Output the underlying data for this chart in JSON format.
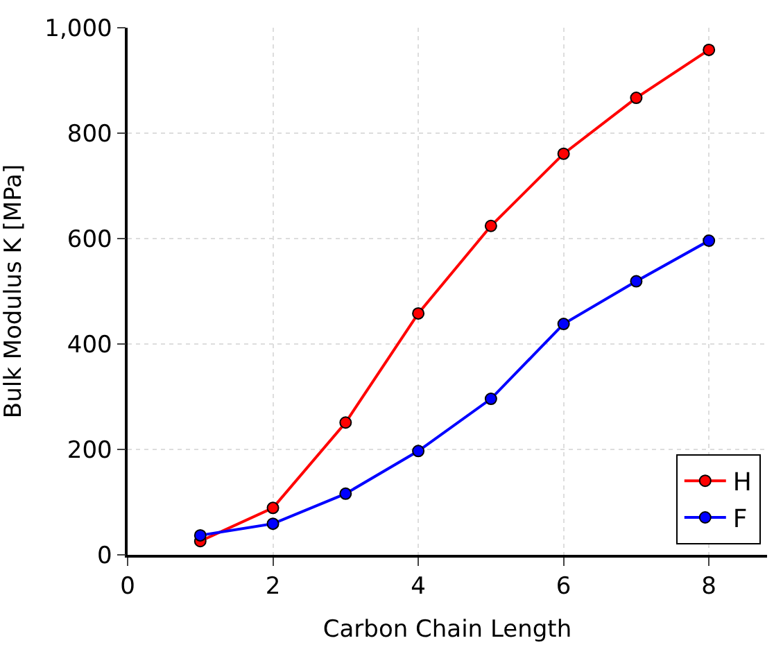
{
  "chart_data": {
    "type": "line",
    "xlabel": "Carbon Chain Length",
    "ylabel": "Bulk Modulus K [MPa]",
    "x": [
      1,
      2,
      3,
      4,
      5,
      6,
      7,
      8
    ],
    "series": [
      {
        "name": "H",
        "color": "#ff0000",
        "values": [
          26,
          89,
          251,
          458,
          624,
          761,
          867,
          958
        ]
      },
      {
        "name": "F",
        "color": "#0000ff",
        "values": [
          37,
          59,
          116,
          197,
          296,
          438,
          519,
          596
        ]
      }
    ],
    "xlim": [
      0,
      8.8
    ],
    "xticks": [
      0,
      2,
      4,
      6,
      8
    ],
    "ylim": [
      0,
      1000
    ],
    "yticks": [
      0,
      200,
      400,
      600,
      800,
      {
        "value": 1000,
        "label": "1,000"
      }
    ],
    "grid": true,
    "legend": "bottom right",
    "marker": "circle",
    "line_style": "solid"
  }
}
